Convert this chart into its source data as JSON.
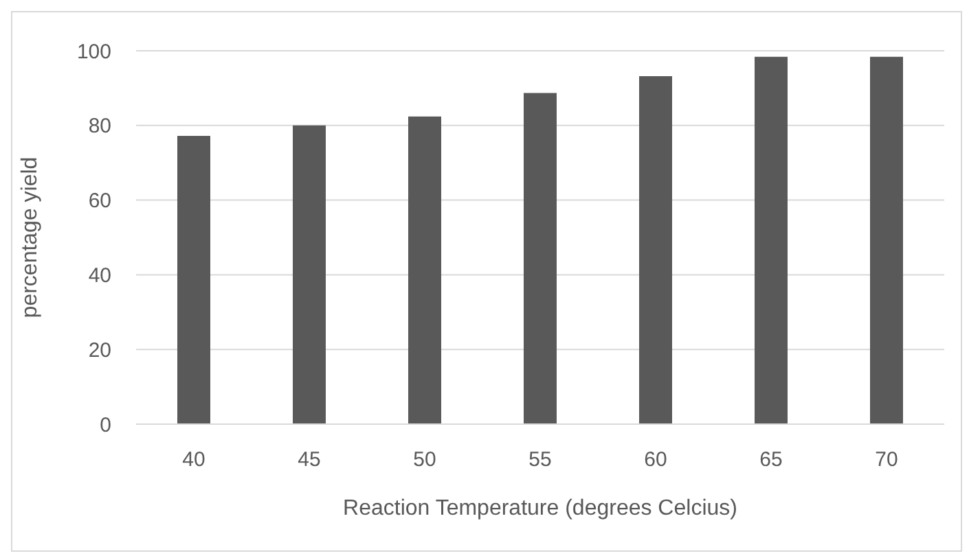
{
  "chart_data": {
    "type": "bar",
    "xlabel": "Reaction Temperature (degrees Celcius)",
    "ylabel": "percentage yield",
    "categories": [
      "40",
      "45",
      "50",
      "55",
      "60",
      "65",
      "70"
    ],
    "values": [
      77.2,
      80,
      82.4,
      88.7,
      93.2,
      98.4,
      98.4
    ],
    "color": "#595959",
    "ylim": [
      0,
      100
    ],
    "yticks": [
      0,
      20,
      40,
      60,
      80,
      100
    ],
    "grid": "y",
    "legend": false
  }
}
